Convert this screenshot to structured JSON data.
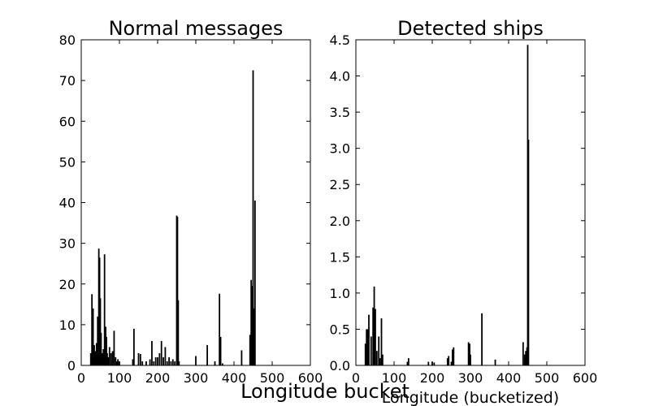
{
  "figure": {
    "suptitle_xlabel": "Longitude bucket"
  },
  "chart_data": [
    {
      "type": "bar",
      "title": "Normal messages",
      "xlabel": "",
      "ylabel": "",
      "xlim": [
        0,
        600
      ],
      "ylim": [
        0,
        80
      ],
      "xticks": [
        0,
        100,
        200,
        300,
        400,
        500,
        600
      ],
      "xtick_labels": [
        "0",
        "100",
        "200",
        "300",
        "400",
        "500",
        "600"
      ],
      "yticks": [
        0,
        10,
        20,
        30,
        40,
        50,
        60,
        70,
        80
      ],
      "ytick_labels": [
        "0",
        "10",
        "20",
        "30",
        "40",
        "50",
        "60",
        "70",
        "80"
      ],
      "grid": false,
      "color": "#000000",
      "x": [
        25,
        28,
        31,
        34,
        37,
        40,
        43,
        46,
        48,
        50,
        52,
        55,
        58,
        61,
        64,
        66,
        68,
        71,
        74,
        78,
        82,
        86,
        90,
        93,
        96,
        100,
        135,
        138,
        150,
        155,
        160,
        170,
        180,
        185,
        190,
        195,
        200,
        205,
        210,
        215,
        220,
        225,
        230,
        235,
        240,
        245,
        250,
        252,
        254,
        256,
        300,
        330,
        350,
        362,
        365,
        370,
        420,
        442,
        445,
        448,
        450,
        452,
        455
      ],
      "values": [
        3,
        17.5,
        14,
        5,
        3.5,
        5.5,
        12,
        28.7,
        26.5,
        16.5,
        8,
        3,
        4,
        27.3,
        9.5,
        7,
        3,
        2,
        4.5,
        3,
        3.5,
        8.5,
        2,
        1,
        1.5,
        1,
        1.5,
        9,
        3,
        2.8,
        1,
        1,
        1.5,
        6,
        1,
        2,
        2,
        3,
        6,
        2,
        4.5,
        1,
        2,
        1,
        1.5,
        1,
        36.8,
        36.5,
        16,
        1,
        2.3,
        5,
        1,
        17.6,
        7,
        0.5,
        3.7,
        7.5,
        21,
        19.5,
        72.5,
        14,
        40.5
      ]
    },
    {
      "type": "bar",
      "title": "Detected ships",
      "xlabel": "Longitude (bucketized)",
      "ylabel": "",
      "xlim": [
        0,
        600
      ],
      "ylim": [
        0,
        4.5
      ],
      "xticks": [
        0,
        100,
        200,
        300,
        400,
        500,
        600
      ],
      "xtick_labels": [
        "0",
        "100",
        "200",
        "300",
        "400",
        "500",
        "600"
      ],
      "yticks": [
        0,
        0.5,
        1.0,
        1.5,
        2.0,
        2.5,
        3.0,
        3.5,
        4.0,
        4.5
      ],
      "ytick_labels": [
        "0.0",
        "0.5",
        "1.0",
        "1.5",
        "2.0",
        "2.5",
        "3.0",
        "3.5",
        "4.0",
        "4.5"
      ],
      "grid": false,
      "color": "#000000",
      "x": [
        25,
        28,
        31,
        34,
        40,
        45,
        48,
        51,
        55,
        60,
        63,
        67,
        70,
        135,
        138,
        190,
        200,
        205,
        240,
        243,
        250,
        253,
        256,
        295,
        298,
        300,
        330,
        365,
        438,
        442,
        445,
        448,
        450,
        452
      ],
      "values": [
        0.3,
        0.5,
        0.5,
        0.7,
        0.4,
        0.8,
        1.09,
        0.78,
        0.2,
        0.4,
        0.1,
        0.65,
        0.15,
        0.05,
        0.1,
        0.05,
        0.05,
        0.04,
        0.1,
        0.13,
        0.05,
        0.22,
        0.25,
        0.32,
        0.3,
        0.15,
        0.72,
        0.08,
        0.32,
        0.15,
        0.2,
        0.25,
        4.43,
        3.12
      ]
    }
  ]
}
